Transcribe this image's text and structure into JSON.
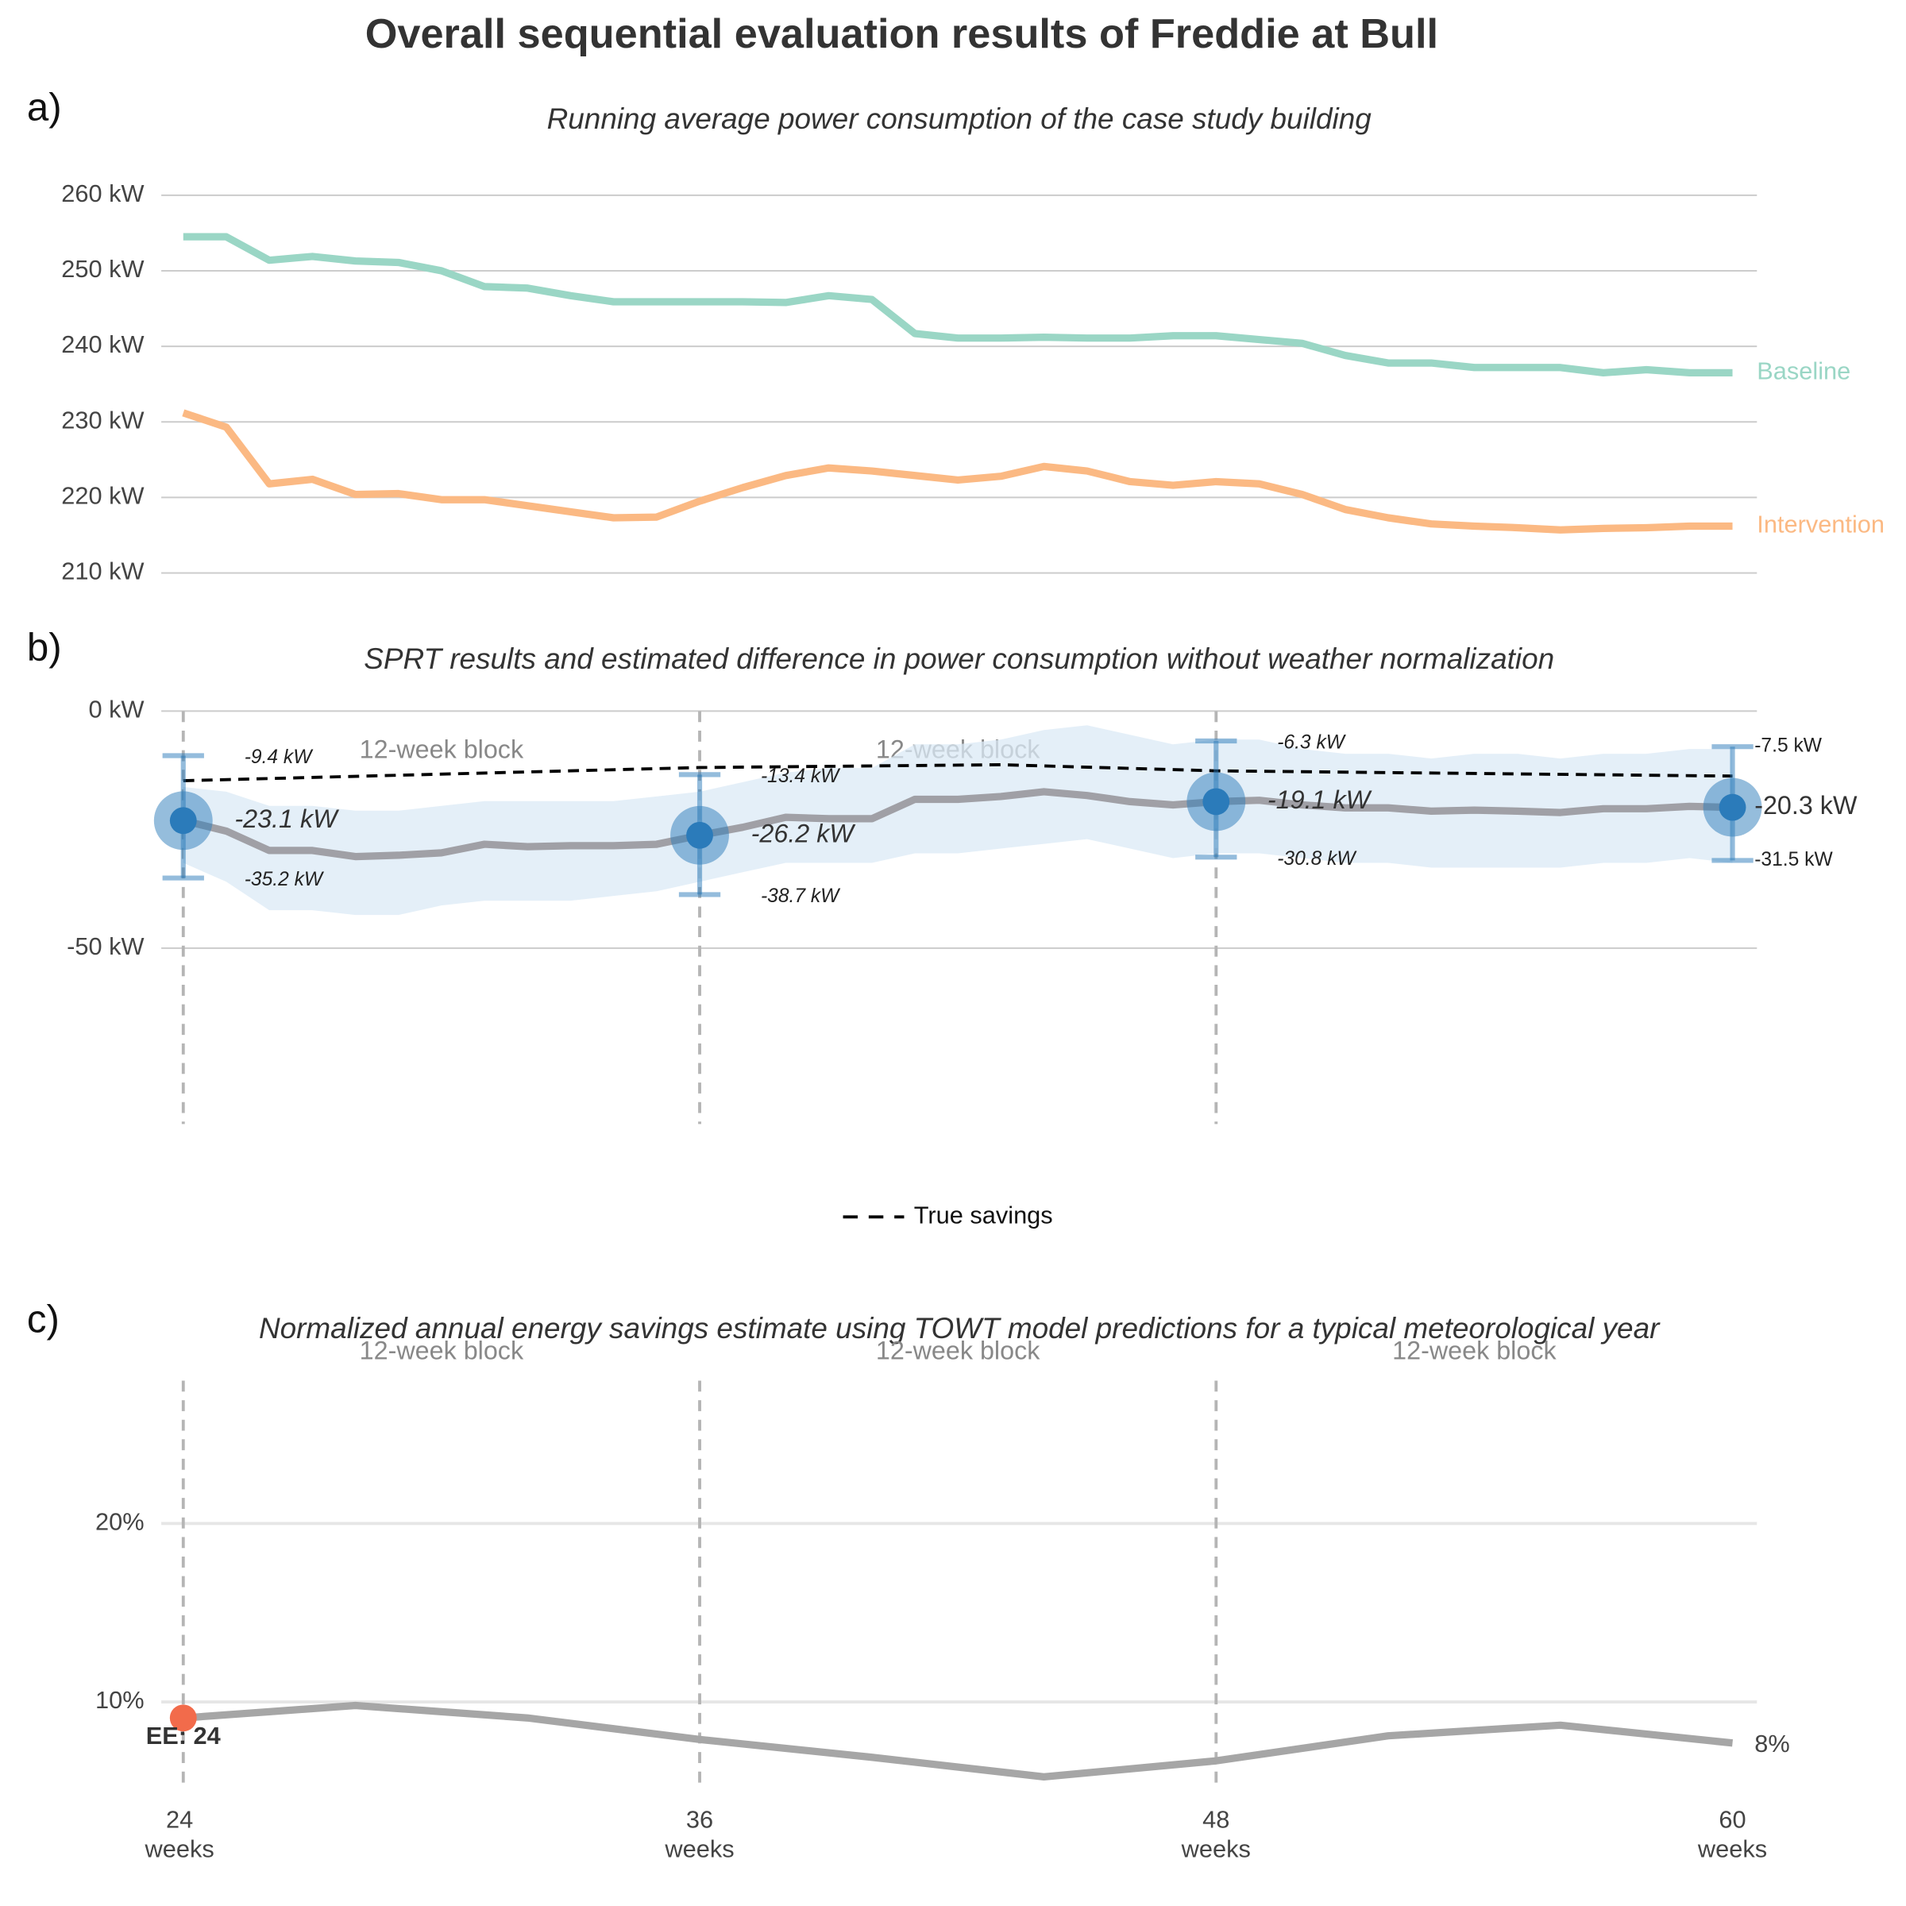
{
  "title": "Overall sequential evaluation results of Freddie at Bull",
  "chart_data": [
    {
      "type": "line",
      "panel_label": "a)",
      "subtitle": "Running average power consumption of the case study building",
      "x": [
        24,
        25,
        26,
        27,
        28,
        29,
        30,
        31,
        32,
        33,
        34,
        35,
        36,
        37,
        38,
        39,
        40,
        41,
        42,
        43,
        44,
        45,
        46,
        47,
        48,
        49,
        50,
        51,
        52,
        53,
        54,
        55,
        56,
        57,
        58,
        59,
        60
      ],
      "xlim": [
        24,
        60
      ],
      "ylim": [
        206.6,
        263.2
      ],
      "grid": true,
      "yticks": [
        {
          "value": 210,
          "label": "210 kW"
        },
        {
          "value": 220,
          "label": "220 kW"
        },
        {
          "value": 230,
          "label": "230 kW"
        },
        {
          "value": 240,
          "label": "240 kW"
        },
        {
          "value": 250,
          "label": "250 kW"
        },
        {
          "value": 260,
          "label": "260 kW"
        }
      ],
      "series": [
        {
          "name": "Baseline",
          "color": "#9ad6c5",
          "values": [
            254.5,
            254.5,
            251.4,
            251.9,
            251.3,
            251.1,
            250.0,
            247.9,
            247.7,
            246.7,
            245.9,
            245.9,
            245.9,
            245.9,
            245.8,
            246.7,
            246.2,
            241.7,
            241.1,
            241.1,
            241.2,
            241.1,
            241.1,
            241.4,
            241.4,
            240.9,
            240.4,
            238.8,
            237.8,
            237.8,
            237.2,
            237.2,
            237.2,
            236.5,
            236.9,
            236.5,
            236.5
          ]
        },
        {
          "name": "Intervention",
          "color": "#fbb983",
          "values": [
            231.2,
            229.3,
            221.8,
            222.4,
            220.4,
            220.5,
            219.7,
            219.7,
            218.9,
            218.1,
            217.3,
            217.4,
            219.5,
            221.3,
            222.9,
            223.9,
            223.5,
            222.9,
            222.3,
            222.8,
            224.1,
            223.5,
            222.1,
            221.6,
            222.1,
            221.8,
            220.4,
            218.4,
            217.3,
            216.5,
            216.2,
            216.0,
            215.7,
            215.9,
            216.0,
            216.2,
            216.2
          ]
        }
      ]
    },
    {
      "type": "sequential",
      "panel_label": "b)",
      "subtitle": "SPRT results and estimated difference in power consumption without weather normalization",
      "x": [
        24,
        25,
        26,
        27,
        28,
        29,
        30,
        31,
        32,
        33,
        34,
        35,
        36,
        37,
        38,
        39,
        40,
        41,
        42,
        43,
        44,
        45,
        46,
        47,
        48,
        49,
        50,
        51,
        52,
        53,
        54,
        55,
        56,
        57,
        58,
        59,
        60
      ],
      "xlim": [
        24,
        60
      ],
      "ylim": [
        -87.1,
        0
      ],
      "grid": true,
      "yticks": [
        {
          "value": -50,
          "label": "-50 kW"
        },
        {
          "value": 0,
          "label": "0 kW"
        }
      ],
      "vlines": [
        24,
        36,
        48
      ],
      "block_labels": [
        "12-week block",
        "12-week block"
      ],
      "estimate": {
        "color": "#a0a0a6",
        "values": [
          -23.1,
          -25.3,
          -29.4,
          -29.4,
          -30.7,
          -30.4,
          -29.9,
          -28.1,
          -28.6,
          -28.4,
          -28.4,
          -28.1,
          -26.2,
          -24.5,
          -22.4,
          -22.7,
          -22.7,
          -18.6,
          -18.6,
          -18.0,
          -17.0,
          -17.8,
          -19.1,
          -19.8,
          -19.1,
          -18.8,
          -19.8,
          -20.4,
          -20.4,
          -21.1,
          -20.9,
          -21.1,
          -21.4,
          -20.6,
          -20.6,
          -20.1,
          -20.3
        ]
      },
      "band": {
        "color": "#dbe9f6",
        "upper": [
          -16,
          -17,
          -20,
          -20,
          -21,
          -21,
          -20,
          -19,
          -19,
          -19,
          -19,
          -18,
          -17,
          -15,
          -13,
          -12,
          -12,
          -7,
          -7,
          -6,
          -4,
          -3,
          -5,
          -7,
          -6,
          -6,
          -8,
          -9,
          -9,
          -10,
          -9,
          -9,
          -10,
          -9,
          -9,
          -8,
          -8
        ],
        "lower": [
          -32,
          -36,
          -42,
          -42,
          -43,
          -43,
          -41,
          -40,
          -40,
          -40,
          -39,
          -38,
          -36,
          -34,
          -32,
          -32,
          -32,
          -30,
          -30,
          -29,
          -28,
          -27,
          -29,
          -31,
          -30,
          -30,
          -31,
          -32,
          -32,
          -33,
          -33,
          -33,
          -33,
          -32,
          -32,
          -31,
          -32
        ]
      },
      "true_savings": {
        "name": "True savings",
        "color": "#000000",
        "x": [
          24,
          36,
          43,
          48,
          60
        ],
        "values": [
          -14.7,
          -11.9,
          -11.3,
          -12.6,
          -13.7
        ]
      },
      "tests": {
        "color": "#2b7bba",
        "x": [
          24,
          36,
          48,
          60
        ],
        "values": [
          -23.1,
          -26.2,
          -19.1,
          -20.3
        ],
        "value_labels": [
          "-23.1 kW",
          "-26.2 kW",
          "-19.1 kW",
          "-20.3 kW"
        ],
        "upper": [
          -9.4,
          -13.4,
          -6.3,
          -7.5
        ],
        "upper_labels": [
          "-9.4 kW",
          "-13.4 kW",
          "-6.3 kW",
          "-7.5 kW"
        ],
        "lower": [
          -35.2,
          -38.7,
          -30.8,
          -31.5
        ],
        "lower_labels": [
          "-35.2 kW",
          "-38.7 kW",
          "-30.8 kW",
          "-31.5 kW"
        ]
      }
    },
    {
      "type": "line",
      "panel_label": "c)",
      "subtitle": "Normalized annual energy savings estimate using TOWT model predictions for a typical meteorological year",
      "x": [
        24,
        28,
        32,
        36,
        40,
        44,
        48,
        52,
        56,
        60
      ],
      "xlim": [
        24,
        60
      ],
      "ylim": [
        5.07,
        28.0
      ],
      "grid": true,
      "yticks": [
        {
          "value": 10,
          "label": "10%"
        },
        {
          "value": 20,
          "label": "20%"
        }
      ],
      "xticks": [
        {
          "value": 24,
          "label": "24 weeks"
        },
        {
          "value": 36,
          "label": "36 weeks"
        },
        {
          "value": 48,
          "label": "48 weeks"
        },
        {
          "value": 60,
          "label": "60 weeks"
        }
      ],
      "vlines": [
        24,
        36,
        48
      ],
      "block_labels": [
        "12-week block",
        "12-week block",
        "12-week block"
      ],
      "series": [
        {
          "color": "#a6a6a6",
          "values": [
            9.1,
            9.8,
            9.1,
            7.9,
            6.9,
            5.8,
            6.7,
            8.1,
            8.7,
            7.7
          ],
          "value_labels": [
            null,
            null,
            null,
            null,
            null,
            null,
            null,
            null,
            null,
            "8%"
          ]
        }
      ],
      "marker": {
        "label": "EE: 24",
        "x": 24,
        "value": 9.1,
        "color": "#f26b4b"
      }
    }
  ]
}
